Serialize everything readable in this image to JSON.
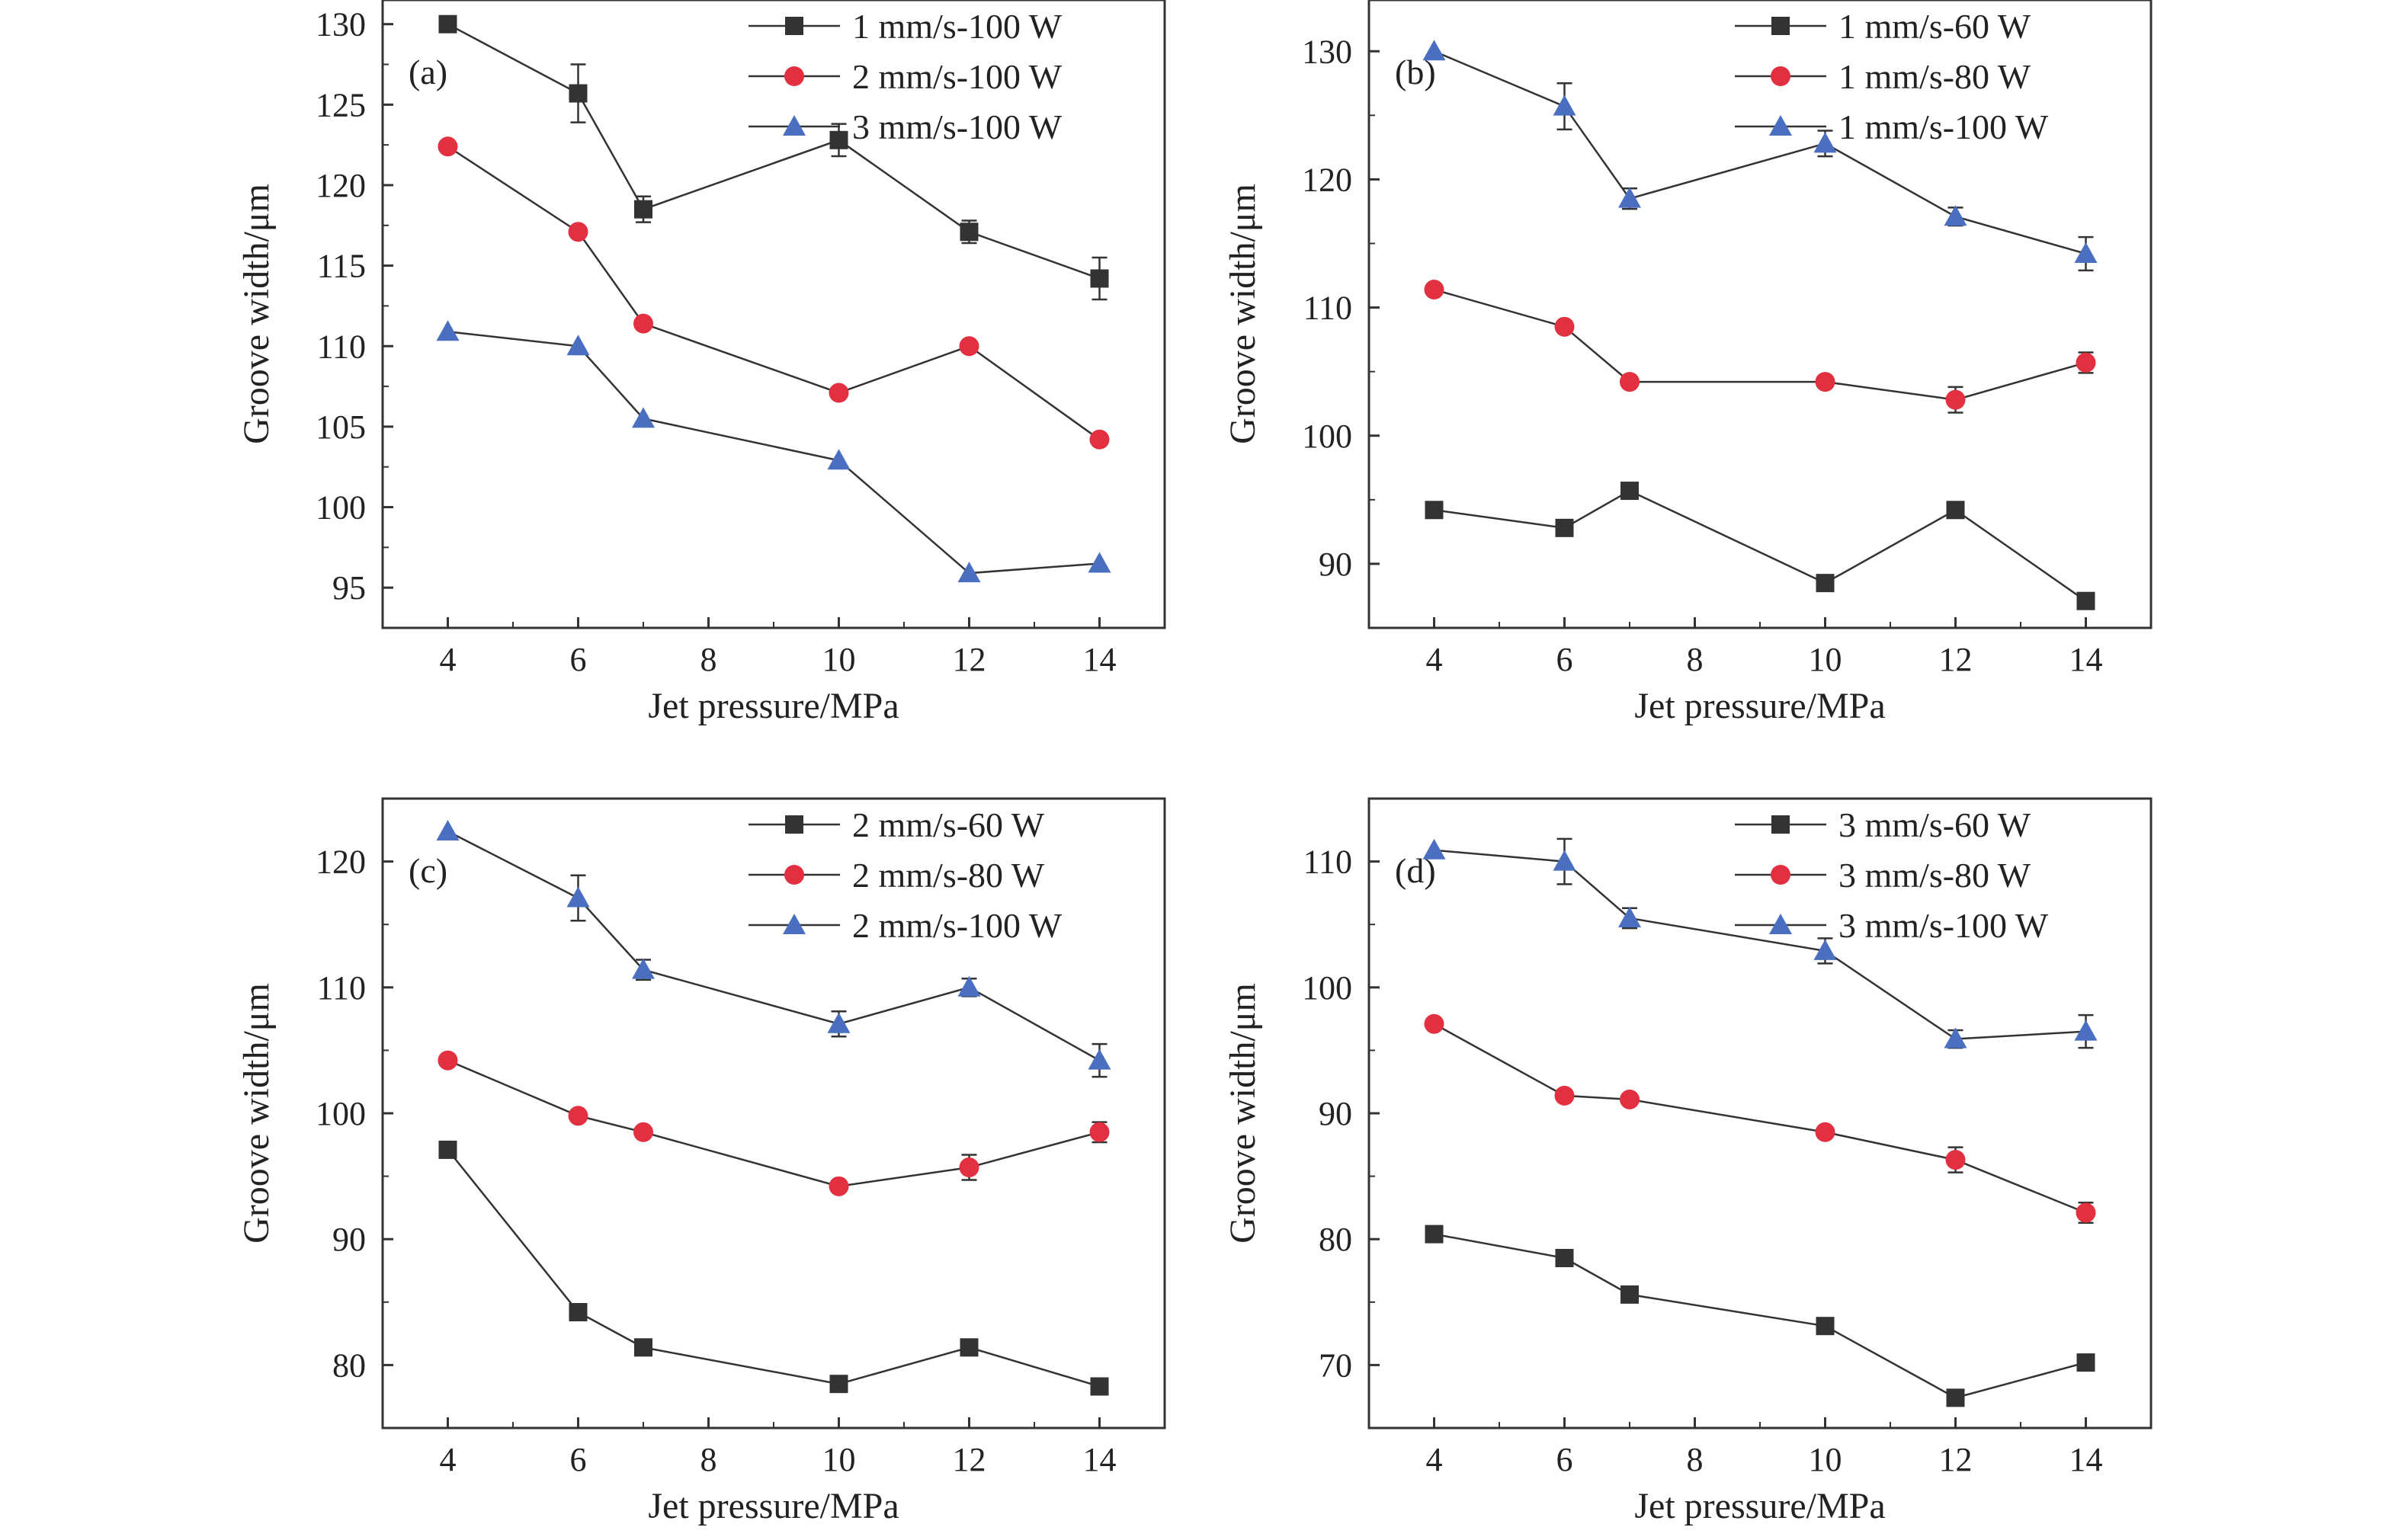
{
  "colors": {
    "series_1": "#333333",
    "series_2": "#e33040",
    "series_3": "#4a6fc0",
    "axis": "#333333",
    "background": "#ffffff"
  },
  "marker_shapes": [
    "square",
    "circle",
    "triangle"
  ],
  "chart_data": [
    {
      "id": "a",
      "panel_label": "(a)",
      "type": "line",
      "xlabel": "Jet pressure/MPa",
      "ylabel": "Groove width/μm",
      "xlim": [
        3,
        15
      ],
      "xticks": [
        4,
        6,
        8,
        10,
        12,
        14
      ],
      "ylim": [
        92.5,
        131.5
      ],
      "yticks": [
        95,
        100,
        105,
        110,
        115,
        120,
        125,
        130
      ],
      "x": [
        4,
        6,
        7,
        10,
        12,
        14
      ],
      "legend_position": "top-right",
      "series": [
        {
          "name": "1 mm/s-100 W",
          "marker": "square",
          "values": [
            130.0,
            125.7,
            118.5,
            122.8,
            117.1,
            114.2
          ],
          "errors": [
            0.0,
            1.8,
            0.8,
            1.0,
            0.7,
            1.3
          ]
        },
        {
          "name": "2 mm/s-100 W",
          "marker": "circle",
          "values": [
            122.4,
            117.1,
            111.4,
            107.1,
            110.0,
            104.2
          ],
          "errors": [
            0.0,
            0.0,
            0.0,
            0.0,
            0.0,
            0.0
          ]
        },
        {
          "name": "3 mm/s-100 W",
          "marker": "triangle",
          "values": [
            110.9,
            110.0,
            105.5,
            102.9,
            95.9,
            96.5
          ],
          "errors": [
            0.0,
            0.0,
            0.0,
            0.0,
            0.0,
            0.0
          ]
        }
      ]
    },
    {
      "id": "b",
      "panel_label": "(b)",
      "type": "line",
      "xlabel": "Jet pressure/MPa",
      "ylabel": "Groove width/μm",
      "xlim": [
        3,
        15
      ],
      "xticks": [
        4,
        6,
        8,
        10,
        12,
        14
      ],
      "ylim": [
        85,
        134
      ],
      "yticks": [
        90,
        100,
        110,
        120,
        130
      ],
      "x": [
        4,
        6,
        7,
        10,
        12,
        14
      ],
      "legend_position": "top-right",
      "series": [
        {
          "name": "1 mm/s-60 W",
          "marker": "square",
          "values": [
            94.2,
            92.8,
            95.7,
            88.5,
            94.2,
            87.1
          ],
          "errors": [
            0.0,
            0.0,
            0.0,
            0.0,
            0.0,
            0.0
          ]
        },
        {
          "name": "1 mm/s-80 W",
          "marker": "circle",
          "values": [
            111.4,
            108.5,
            104.2,
            104.2,
            102.8,
            105.7
          ],
          "errors": [
            0.0,
            0.0,
            0.0,
            0.0,
            1.0,
            0.8
          ]
        },
        {
          "name": "1 mm/s-100 W",
          "marker": "triangle",
          "values": [
            130.0,
            125.7,
            118.5,
            122.8,
            117.1,
            114.2
          ],
          "errors": [
            0.0,
            1.8,
            0.8,
            1.0,
            0.7,
            1.3
          ]
        }
      ]
    },
    {
      "id": "c",
      "panel_label": "(c)",
      "type": "line",
      "xlabel": "Jet pressure/MPa",
      "ylabel": "Groove width/μm",
      "xlim": [
        3,
        15
      ],
      "xticks": [
        4,
        6,
        8,
        10,
        12,
        14
      ],
      "ylim": [
        75,
        125
      ],
      "yticks": [
        80,
        90,
        100,
        110,
        120
      ],
      "x": [
        4,
        6,
        7,
        10,
        12,
        14
      ],
      "legend_position": "top-right",
      "series": [
        {
          "name": "2 mm/s-60 W",
          "marker": "square",
          "values": [
            97.1,
            84.2,
            81.4,
            78.5,
            81.4,
            78.3
          ],
          "errors": [
            0.0,
            0.0,
            0.0,
            0.0,
            0.0,
            0.0
          ]
        },
        {
          "name": "2 mm/s-80 W",
          "marker": "circle",
          "values": [
            104.2,
            99.8,
            98.5,
            94.2,
            95.7,
            98.5
          ],
          "errors": [
            0.0,
            0.0,
            0.0,
            0.0,
            1.0,
            0.8
          ]
        },
        {
          "name": "2 mm/s-100 W",
          "marker": "triangle",
          "values": [
            122.4,
            117.1,
            111.4,
            107.1,
            110.0,
            104.2
          ],
          "errors": [
            0.0,
            1.8,
            0.8,
            1.0,
            0.7,
            1.3
          ]
        }
      ]
    },
    {
      "id": "d",
      "panel_label": "(d)",
      "type": "line",
      "xlabel": "Jet pressure/MPa",
      "ylabel": "Groove width/μm",
      "xlim": [
        3,
        15
      ],
      "xticks": [
        4,
        6,
        8,
        10,
        12,
        14
      ],
      "ylim": [
        65,
        115
      ],
      "yticks": [
        70,
        80,
        90,
        100,
        110
      ],
      "x": [
        4,
        6,
        7,
        10,
        12,
        14
      ],
      "legend_position": "top-right",
      "series": [
        {
          "name": "3 mm/s-60 W",
          "marker": "square",
          "values": [
            80.4,
            78.5,
            75.6,
            73.1,
            67.4,
            70.2
          ],
          "errors": [
            0.0,
            0.0,
            0.0,
            0.0,
            0.0,
            0.0
          ]
        },
        {
          "name": "3 mm/s-80 W",
          "marker": "circle",
          "values": [
            97.1,
            91.4,
            91.1,
            88.5,
            86.3,
            82.1
          ],
          "errors": [
            0.0,
            0.0,
            0.0,
            0.0,
            1.0,
            0.8
          ]
        },
        {
          "name": "3 mm/s-100 W",
          "marker": "triangle",
          "values": [
            110.9,
            110.0,
            105.5,
            102.9,
            95.9,
            96.5
          ],
          "errors": [
            0.0,
            1.8,
            0.8,
            1.0,
            0.7,
            1.3
          ]
        }
      ]
    }
  ]
}
